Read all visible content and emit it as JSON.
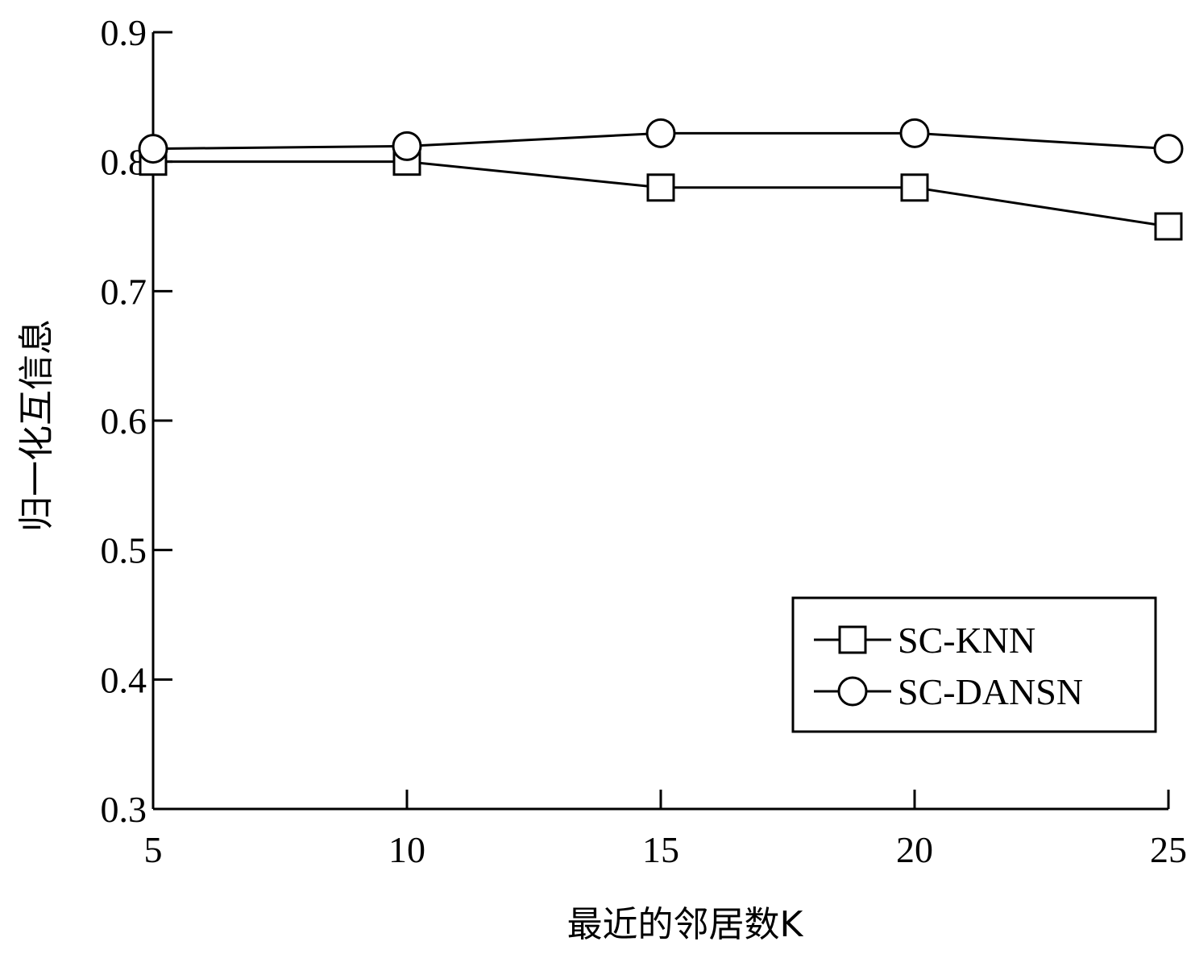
{
  "chart_data": {
    "type": "line",
    "title": "",
    "xlabel": "最近的邻居数K",
    "ylabel": "归一化互信息",
    "x": [
      5,
      10,
      15,
      20,
      25
    ],
    "xticks": [
      "5",
      "10",
      "15",
      "20",
      "25"
    ],
    "yticks": [
      "0.3",
      "0.4",
      "0.5",
      "0.6",
      "0.7",
      "0.8",
      "0.9"
    ],
    "xlim": [
      5,
      25
    ],
    "ylim": [
      0.3,
      0.9
    ],
    "grid": false,
    "legend_position": "bottom-right",
    "series": [
      {
        "name": "SC-KNN",
        "marker": "square",
        "values": [
          0.8,
          0.8,
          0.78,
          0.78,
          0.75
        ]
      },
      {
        "name": "SC-DANSN",
        "marker": "circle",
        "values": [
          0.81,
          0.812,
          0.822,
          0.822,
          0.81
        ]
      }
    ]
  }
}
